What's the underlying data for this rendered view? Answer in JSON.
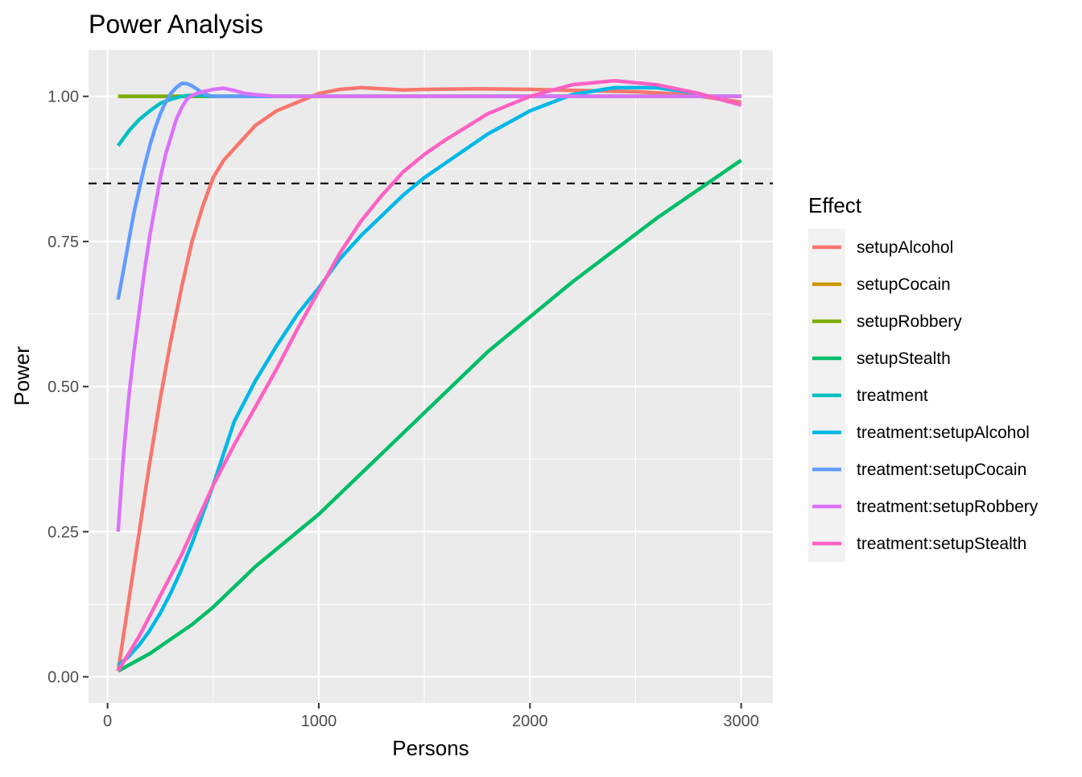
{
  "chart_data": {
    "type": "line",
    "title": "Power Analysis",
    "xlabel": "Persons",
    "ylabel": "Power",
    "xlim": [
      -90,
      3150
    ],
    "ylim": [
      -0.045,
      1.08
    ],
    "x_ticks": [
      0,
      1000,
      2000,
      3000
    ],
    "x_tick_labels": [
      "0",
      "1000",
      "2000",
      "3000"
    ],
    "y_ticks": [
      0,
      0.25,
      0.5,
      0.75,
      1
    ],
    "y_tick_labels": [
      "0.00",
      "0.25",
      "0.50",
      "0.75",
      "1.00"
    ],
    "grid": true,
    "reference_line": {
      "y": 0.85,
      "style": "dashed",
      "color": "#000000"
    },
    "legend": {
      "title": "Effect",
      "position": "right"
    },
    "series": [
      {
        "name": "setupAlcohol",
        "color": "#F8766D",
        "x": [
          50,
          100,
          150,
          200,
          250,
          300,
          350,
          400,
          450,
          500,
          550,
          600,
          700,
          800,
          900,
          1000,
          1100,
          1200,
          1300,
          1400,
          1500,
          1750,
          2000,
          2250,
          2500,
          2750,
          3000
        ],
        "y": [
          0.01,
          0.13,
          0.25,
          0.37,
          0.48,
          0.58,
          0.67,
          0.75,
          0.81,
          0.86,
          0.89,
          0.91,
          0.95,
          0.975,
          0.99,
          1.005,
          1.012,
          1.015,
          1.013,
          1.011,
          1.012,
          1.013,
          1.012,
          1.01,
          1.008,
          1.003,
          0.99
        ]
      },
      {
        "name": "setupCocain",
        "color": "#CD9600",
        "x": [
          50,
          500,
          1000,
          1500,
          2000,
          2500,
          3000
        ],
        "y": [
          1.0,
          1.0,
          1.0,
          1.0,
          1.0,
          1.0,
          1.0
        ]
      },
      {
        "name": "setupRobbery",
        "color": "#7CAE00",
        "x": [
          50,
          500,
          1000,
          1500,
          2000,
          2500,
          3000
        ],
        "y": [
          1.0,
          1.0,
          1.0,
          1.0,
          1.0,
          1.0,
          1.0
        ]
      },
      {
        "name": "setupStealth",
        "color": "#00BE67",
        "x": [
          50,
          100,
          200,
          300,
          400,
          500,
          600,
          700,
          800,
          1000,
          1200,
          1400,
          1600,
          1800,
          2000,
          2200,
          2400,
          2600,
          2800,
          3000
        ],
        "y": [
          0.01,
          0.02,
          0.04,
          0.065,
          0.09,
          0.12,
          0.155,
          0.19,
          0.22,
          0.28,
          0.35,
          0.42,
          0.49,
          0.56,
          0.62,
          0.68,
          0.735,
          0.79,
          0.84,
          0.89
        ]
      },
      {
        "name": "treatment",
        "color": "#00BFC4",
        "x": [
          50,
          100,
          150,
          200,
          250,
          300,
          350,
          400,
          500,
          600,
          1000,
          1500,
          2000,
          2500,
          3000
        ],
        "y": [
          0.915,
          0.94,
          0.96,
          0.975,
          0.988,
          0.995,
          1.0,
          1.002,
          1.0,
          1.0,
          1.0,
          1.0,
          1.0,
          1.0,
          1.0
        ]
      },
      {
        "name": "treatment:setupAlcohol",
        "color": "#00B8E7",
        "x": [
          50,
          100,
          150,
          200,
          250,
          300,
          350,
          400,
          450,
          500,
          550,
          600,
          700,
          800,
          900,
          1000,
          1100,
          1200,
          1300,
          1400,
          1500,
          1600,
          1800,
          2000,
          2200,
          2400,
          2600,
          2800,
          3000
        ],
        "y": [
          0.02,
          0.035,
          0.055,
          0.08,
          0.11,
          0.145,
          0.185,
          0.23,
          0.28,
          0.33,
          0.385,
          0.44,
          0.51,
          0.57,
          0.625,
          0.67,
          0.72,
          0.76,
          0.795,
          0.83,
          0.86,
          0.885,
          0.935,
          0.975,
          1.003,
          1.015,
          1.015,
          1.005,
          0.985
        ]
      },
      {
        "name": "treatment:setupCocain",
        "color": "#619CFF",
        "x": [
          50,
          75,
          100,
          125,
          150,
          175,
          200,
          225,
          250,
          275,
          300,
          325,
          350,
          375,
          400,
          425,
          450,
          475,
          500,
          550,
          600,
          700,
          800,
          1000,
          1500,
          2000,
          2500,
          3000
        ],
        "y": [
          0.65,
          0.7,
          0.75,
          0.8,
          0.84,
          0.88,
          0.915,
          0.945,
          0.97,
          0.99,
          1.005,
          1.015,
          1.022,
          1.022,
          1.018,
          1.012,
          1.006,
          1.002,
          1.0,
          1.0,
          1.0,
          1.0,
          1.0,
          1.0,
          1.0,
          1.0,
          1.0,
          1.0
        ]
      },
      {
        "name": "treatment:setupRobbery",
        "color": "#DB72FB",
        "x": [
          50,
          75,
          100,
          125,
          150,
          175,
          200,
          225,
          250,
          275,
          300,
          325,
          350,
          375,
          400,
          450,
          500,
          550,
          600,
          650,
          700,
          800,
          1000,
          1500,
          2000,
          2500,
          3000
        ],
        "y": [
          0.25,
          0.38,
          0.48,
          0.56,
          0.63,
          0.7,
          0.76,
          0.81,
          0.86,
          0.9,
          0.93,
          0.96,
          0.98,
          0.995,
          1.002,
          1.008,
          1.012,
          1.014,
          1.01,
          1.005,
          1.003,
          1.0,
          1.0,
          1.0,
          1.0,
          1.0,
          1.0
        ]
      },
      {
        "name": "treatment:setupStealth",
        "color": "#FF61C3",
        "x": [
          50,
          100,
          150,
          200,
          250,
          300,
          350,
          400,
          450,
          500,
          550,
          600,
          700,
          800,
          900,
          1000,
          1100,
          1200,
          1300,
          1400,
          1500,
          1600,
          1800,
          2000,
          2200,
          2400,
          2600,
          2800,
          3000
        ],
        "y": [
          0.01,
          0.04,
          0.07,
          0.105,
          0.14,
          0.175,
          0.21,
          0.25,
          0.29,
          0.33,
          0.365,
          0.4,
          0.465,
          0.53,
          0.6,
          0.665,
          0.73,
          0.785,
          0.83,
          0.87,
          0.9,
          0.925,
          0.97,
          1.0,
          1.02,
          1.027,
          1.02,
          1.005,
          0.985
        ]
      }
    ]
  }
}
